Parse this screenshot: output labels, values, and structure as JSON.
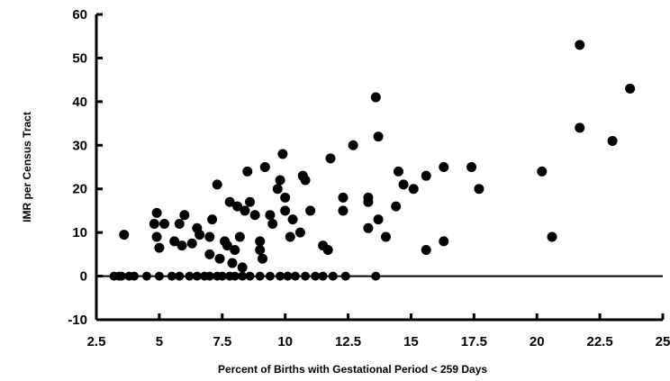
{
  "chart_data": {
    "type": "scatter",
    "xlabel": "Percent of Births with Gestational Period < 259 Days",
    "ylabel": "IMR per Census Tract",
    "xlim": [
      2.5,
      25
    ],
    "ylim": [
      -10,
      60
    ],
    "xticks": [
      "2.5",
      "5",
      "7.5",
      "10",
      "12.5",
      "15",
      "17.5",
      "20",
      "22.5",
      "25"
    ],
    "yticks": [
      "60",
      "50",
      "40",
      "30",
      "20",
      "10",
      "0",
      "-10"
    ],
    "baseline_y": 0,
    "grid": false,
    "legend": "none",
    "marker_color": "#000000",
    "points": [
      [
        3.6,
        9.5
      ],
      [
        4.9,
        14.5
      ],
      [
        4.8,
        12
      ],
      [
        5.2,
        12
      ],
      [
        4.9,
        9
      ],
      [
        5.0,
        6.5
      ],
      [
        5.6,
        8
      ],
      [
        5.8,
        12
      ],
      [
        6.0,
        14
      ],
      [
        5.9,
        7
      ],
      [
        6.3,
        7.5
      ],
      [
        6.5,
        11
      ],
      [
        6.6,
        9.5
      ],
      [
        7.1,
        13
      ],
      [
        7.0,
        9
      ],
      [
        7.3,
        21
      ],
      [
        7.0,
        5
      ],
      [
        7.4,
        4
      ],
      [
        7.6,
        8
      ],
      [
        7.7,
        7
      ],
      [
        7.8,
        17
      ],
      [
        8.1,
        16
      ],
      [
        8.0,
        6
      ],
      [
        8.4,
        15
      ],
      [
        8.5,
        24
      ],
      [
        8.6,
        17
      ],
      [
        8.8,
        14
      ],
      [
        8.2,
        9
      ],
      [
        8.3,
        2
      ],
      [
        7.9,
        3
      ],
      [
        9.0,
        8
      ],
      [
        9.2,
        25
      ],
      [
        9.0,
        6
      ],
      [
        9.4,
        14
      ],
      [
        9.5,
        12
      ],
      [
        9.1,
        4
      ],
      [
        9.7,
        20
      ],
      [
        9.8,
        22
      ],
      [
        9.9,
        28
      ],
      [
        10.0,
        15
      ],
      [
        10.0,
        18
      ],
      [
        10.2,
        9
      ],
      [
        10.3,
        13
      ],
      [
        10.6,
        10
      ],
      [
        10.7,
        23
      ],
      [
        10.8,
        22
      ],
      [
        11.0,
        15
      ],
      [
        11.5,
        7
      ],
      [
        11.7,
        6
      ],
      [
        11.8,
        27
      ],
      [
        12.3,
        18
      ],
      [
        12.3,
        15
      ],
      [
        12.7,
        30
      ],
      [
        13.3,
        18
      ],
      [
        13.3,
        17
      ],
      [
        13.6,
        41
      ],
      [
        13.7,
        32
      ],
      [
        13.7,
        13
      ],
      [
        13.3,
        11
      ],
      [
        14.0,
        9
      ],
      [
        14.4,
        16
      ],
      [
        14.5,
        24
      ],
      [
        14.7,
        21
      ],
      [
        15.1,
        20
      ],
      [
        15.6,
        23
      ],
      [
        15.6,
        6
      ],
      [
        16.3,
        25
      ],
      [
        16.3,
        8
      ],
      [
        17.4,
        25
      ],
      [
        17.7,
        20
      ],
      [
        20.2,
        24
      ],
      [
        20.6,
        9
      ],
      [
        21.7,
        53
      ],
      [
        21.7,
        34
      ],
      [
        23.0,
        31
      ],
      [
        23.7,
        43
      ]
    ],
    "zero_points_x": [
      3.2,
      3.4,
      3.5,
      3.8,
      4.0,
      4.5,
      5.0,
      5.5,
      5.8,
      6.2,
      6.5,
      6.8,
      7.0,
      7.3,
      7.5,
      7.8,
      8.0,
      8.3,
      8.6,
      9.0,
      9.4,
      9.8,
      10.1,
      10.4,
      10.8,
      11.2,
      11.5,
      11.9,
      12.4,
      13.6
    ]
  }
}
